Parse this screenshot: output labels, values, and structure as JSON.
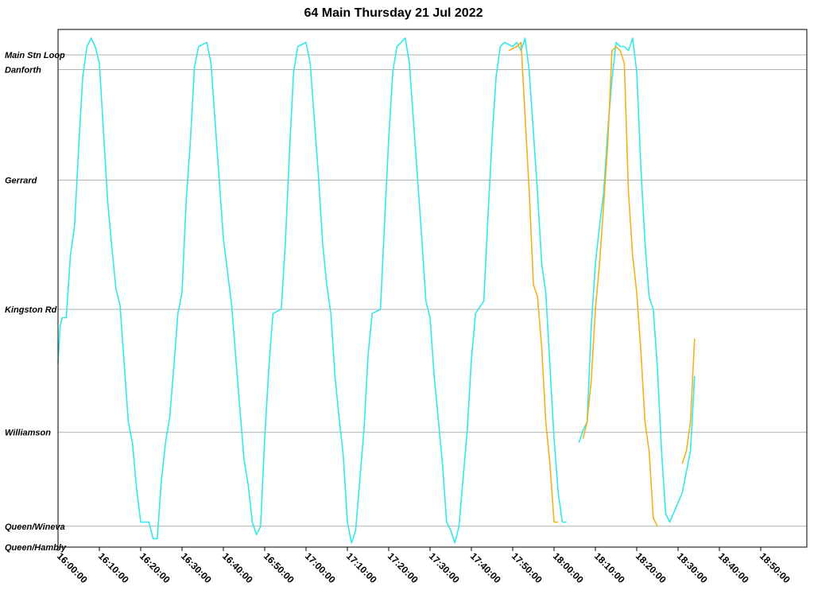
{
  "chart_data": {
    "type": "line",
    "title": "64 Main Thursday 21 Jul 2022",
    "x_unit": "clock time (hh:mm)",
    "y_unit": "stop",
    "xlim": [
      "16:00",
      "19:05"
    ],
    "grid": "horizontal gridlines at each stop",
    "stops": [
      {
        "name": "Main Stn Loop",
        "pos": 1.0
      },
      {
        "name": "Danforth",
        "pos": 0.965
      },
      {
        "name": "Gerrard",
        "pos": 0.7
      },
      {
        "name": "Kingston Rd",
        "pos": 0.39
      },
      {
        "name": "Williamson",
        "pos": 0.095
      },
      {
        "name": "Queen/Wineva",
        "pos": -0.13
      },
      {
        "name": "Queen/Hambly",
        "pos": -0.18
      }
    ],
    "x_ticks": [
      "16:00:00",
      "16:10:00",
      "16:20:00",
      "16:30:00",
      "16:40:00",
      "16:50:00",
      "17:00:00",
      "17:10:00",
      "17:20:00",
      "17:30:00",
      "17:40:00",
      "17:50:00",
      "18:00:00",
      "18:10:00",
      "18:20:00",
      "18:30:00",
      "18:40:00",
      "18:50:00"
    ],
    "series": [
      {
        "color": "#33e8e8",
        "segments": [
          [
            [
              "16:00",
              0.26
            ],
            [
              "16:00.5",
              0.35
            ],
            [
              "16:01",
              0.37
            ],
            [
              "16:02",
              0.37
            ],
            [
              "16:03",
              0.52
            ],
            [
              "16:04",
              0.59
            ],
            [
              "16:05",
              0.78
            ],
            [
              "16:06",
              0.95
            ],
            [
              "16:07",
              1.02
            ],
            [
              "16:08",
              1.04
            ],
            [
              "16:09",
              1.02
            ],
            [
              "16:10",
              0.98
            ],
            [
              "16:12",
              0.65
            ],
            [
              "16:13",
              0.54
            ],
            [
              "16:14",
              0.44
            ],
            [
              "16:15",
              0.4
            ],
            [
              "16:17",
              0.12
            ],
            [
              "16:18",
              0.07
            ],
            [
              "16:19",
              -0.04
            ],
            [
              "16:20",
              -0.12
            ],
            [
              "16:22",
              -0.12
            ],
            [
              "16:23",
              -0.16
            ],
            [
              "16:24",
              -0.16
            ],
            [
              "16:25",
              -0.02
            ],
            [
              "16:26",
              0.07
            ],
            [
              "16:27",
              0.13
            ],
            [
              "16:28",
              0.25
            ],
            [
              "16:29",
              0.38
            ],
            [
              "16:30",
              0.43
            ],
            [
              "16:31",
              0.65
            ],
            [
              "16:32",
              0.79
            ],
            [
              "16:33",
              0.97
            ],
            [
              "16:34",
              1.02
            ],
            [
              "16:36",
              1.03
            ],
            [
              "16:37",
              0.98
            ],
            [
              "16:39",
              0.7
            ],
            [
              "16:40",
              0.56
            ],
            [
              "16:42",
              0.4
            ],
            [
              "16:44",
              0.15
            ],
            [
              "16:45",
              0.03
            ],
            [
              "16:46",
              -0.03
            ],
            [
              "16:47",
              -0.12
            ],
            [
              "16:48",
              -0.15
            ],
            [
              "16:49",
              -0.13
            ],
            [
              "16:50",
              0.08
            ],
            [
              "16:51",
              0.25
            ],
            [
              "16:52",
              0.38
            ],
            [
              "16:54",
              0.39
            ],
            [
              "16:55",
              0.55
            ],
            [
              "16:56",
              0.77
            ],
            [
              "16:57",
              0.96
            ],
            [
              "16:58",
              1.02
            ],
            [
              "17:00",
              1.03
            ],
            [
              "17:01",
              0.98
            ],
            [
              "17:03",
              0.71
            ],
            [
              "17:04",
              0.55
            ],
            [
              "17:05",
              0.45
            ],
            [
              "17:06",
              0.38
            ],
            [
              "17:07",
              0.23
            ],
            [
              "17:08",
              0.13
            ],
            [
              "17:09",
              0.04
            ],
            [
              "17:10",
              -0.12
            ],
            [
              "17:11",
              -0.17
            ],
            [
              "17:12",
              -0.14
            ],
            [
              "17:14",
              0.1
            ],
            [
              "17:15",
              0.28
            ],
            [
              "17:16",
              0.38
            ],
            [
              "17:18",
              0.39
            ],
            [
              "17:19",
              0.6
            ],
            [
              "17:20",
              0.8
            ],
            [
              "17:21",
              0.96
            ],
            [
              "17:22",
              1.02
            ],
            [
              "17:24",
              1.04
            ],
            [
              "17:25",
              0.98
            ],
            [
              "17:27",
              0.7
            ],
            [
              "17:28",
              0.56
            ],
            [
              "17:29",
              0.41
            ],
            [
              "17:30",
              0.37
            ],
            [
              "17:31",
              0.23
            ],
            [
              "17:33",
              0.02
            ],
            [
              "17:34",
              -0.12
            ],
            [
              "17:35",
              -0.14
            ],
            [
              "17:36",
              -0.17
            ],
            [
              "17:37",
              -0.13
            ],
            [
              "17:39",
              0.1
            ],
            [
              "17:40",
              0.27
            ],
            [
              "17:41",
              0.38
            ],
            [
              "17:43",
              0.41
            ],
            [
              "17:44",
              0.61
            ],
            [
              "17:45",
              0.8
            ],
            [
              "17:46",
              0.95
            ],
            [
              "17:47",
              1.02
            ],
            [
              "17:48",
              1.03
            ],
            [
              "17:50",
              1.02
            ],
            [
              "17:51",
              1.03
            ],
            [
              "17:52",
              1.01
            ],
            [
              "17:53",
              1.04
            ],
            [
              "17:54",
              0.96
            ],
            [
              "17:56",
              0.67
            ],
            [
              "17:57",
              0.5
            ],
            [
              "17:58",
              0.43
            ],
            [
              "18:00",
              0.08
            ],
            [
              "18:01",
              -0.05
            ],
            [
              "18:02",
              -0.12
            ],
            [
              "18:03",
              -0.12
            ]
          ],
          [
            [
              "18:06",
              0.07
            ],
            [
              "18:07",
              0.1
            ],
            [
              "18:08",
              0.12
            ],
            [
              "18:09",
              0.35
            ],
            [
              "18:10",
              0.5
            ],
            [
              "18:11",
              0.59
            ],
            [
              "18:12",
              0.67
            ],
            [
              "18:13",
              0.82
            ],
            [
              "18:14",
              0.94
            ],
            [
              "18:15",
              1.03
            ],
            [
              "18:16",
              1.02
            ],
            [
              "18:17",
              1.02
            ],
            [
              "18:18",
              1.01
            ],
            [
              "18:19",
              1.04
            ],
            [
              "18:20",
              0.96
            ],
            [
              "18:21",
              0.73
            ],
            [
              "18:22",
              0.55
            ],
            [
              "18:23",
              0.42
            ],
            [
              "18:24",
              0.39
            ],
            [
              "18:25",
              0.25
            ],
            [
              "18:26",
              0.05
            ],
            [
              "18:27",
              -0.1
            ],
            [
              "18:28",
              -0.12
            ],
            [
              "18:31",
              -0.05
            ],
            [
              "18:33",
              0.05
            ],
            [
              "18:34",
              0.23
            ]
          ]
        ]
      },
      {
        "color": "#f2b21a",
        "segments": [
          [
            [
              "17:49",
              1.01
            ],
            [
              "17:51",
              1.02
            ],
            [
              "17:52",
              1.03
            ],
            [
              "17:53",
              0.85
            ],
            [
              "17:54",
              0.67
            ],
            [
              "17:55",
              0.45
            ],
            [
              "17:56",
              0.42
            ],
            [
              "17:57",
              0.3
            ],
            [
              "17:58",
              0.12
            ],
            [
              "17:59",
              0.02
            ],
            [
              "18:00",
              -0.12
            ],
            [
              "18:01",
              -0.12
            ]
          ],
          [
            [
              "18:07",
              0.08
            ],
            [
              "18:08",
              0.12
            ],
            [
              "18:09",
              0.22
            ],
            [
              "18:10",
              0.39
            ],
            [
              "18:11",
              0.5
            ],
            [
              "18:12",
              0.64
            ],
            [
              "18:13",
              0.79
            ],
            [
              "18:14",
              1.01
            ],
            [
              "18:15",
              1.02
            ],
            [
              "18:16",
              1.01
            ],
            [
              "18:17",
              0.98
            ],
            [
              "18:18",
              0.67
            ],
            [
              "18:19",
              0.52
            ],
            [
              "18:20",
              0.43
            ],
            [
              "18:21",
              0.29
            ],
            [
              "18:22",
              0.12
            ],
            [
              "18:23",
              0.05
            ],
            [
              "18:24",
              -0.11
            ],
            [
              "18:25",
              -0.13
            ]
          ],
          [
            [
              "18:31",
              0.02
            ],
            [
              "18:32",
              0.05
            ],
            [
              "18:33",
              0.12
            ],
            [
              "18:34",
              0.32
            ]
          ]
        ]
      }
    ]
  }
}
